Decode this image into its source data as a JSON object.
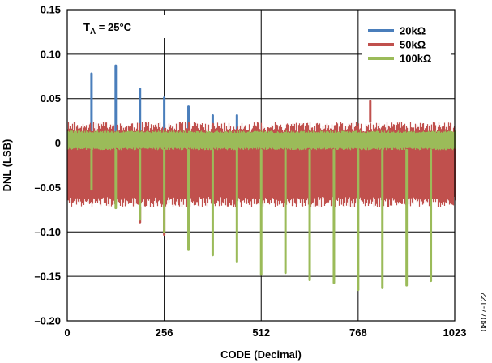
{
  "chart_data": {
    "type": "line",
    "title": "",
    "xlabel": "CODE (Decimal)",
    "ylabel": "DNL (LSB)",
    "xlim": [
      0,
      1023
    ],
    "ylim": [
      -0.2,
      0.15
    ],
    "x_ticks": [
      {
        "value": 0,
        "label": "0"
      },
      {
        "value": 256,
        "label": "256"
      },
      {
        "value": 512,
        "label": "512"
      },
      {
        "value": 768,
        "label": "768"
      },
      {
        "value": 1023,
        "label": "1023"
      }
    ],
    "y_ticks": [
      {
        "value": 0.15,
        "label": "0.15"
      },
      {
        "value": 0.1,
        "label": "0.10"
      },
      {
        "value": 0.05,
        "label": "0.05"
      },
      {
        "value": 0,
        "label": "0"
      },
      {
        "value": -0.05,
        "label": "–0.05"
      },
      {
        "value": -0.1,
        "label": "–0.10"
      },
      {
        "value": -0.15,
        "label": "–0.15"
      },
      {
        "value": -0.2,
        "label": "–0.20"
      }
    ],
    "grid": true,
    "legend_position": "top-right",
    "annotation": {
      "main": "T",
      "sub": "A",
      "rest": " = 25°C"
    },
    "series": [
      {
        "name": "20kΩ",
        "color": "#4a7ebb",
        "band": [
          -0.004,
          0.012
        ],
        "spikes": [
          {
            "x": 64,
            "y": 0.078
          },
          {
            "x": 128,
            "y": 0.087
          },
          {
            "x": 192,
            "y": 0.061
          },
          {
            "x": 256,
            "y": 0.051
          },
          {
            "x": 320,
            "y": 0.041
          },
          {
            "x": 384,
            "y": 0.031
          },
          {
            "x": 448,
            "y": 0.031
          }
        ]
      },
      {
        "name": "50kΩ",
        "color": "#c0504d",
        "band": [
          -0.072,
          0.024
        ],
        "spikes": [
          {
            "x": 192,
            "y": -0.089
          },
          {
            "x": 256,
            "y": -0.103
          },
          {
            "x": 800,
            "y": 0.047
          }
        ]
      },
      {
        "name": "100kΩ",
        "color": "#9bbb59",
        "band": [
          -0.008,
          0.014
        ],
        "spikes": [
          {
            "x": 64,
            "y": -0.052
          },
          {
            "x": 128,
            "y": -0.073
          },
          {
            "x": 192,
            "y": -0.086
          },
          {
            "x": 256,
            "y": -0.1
          },
          {
            "x": 320,
            "y": -0.12
          },
          {
            "x": 384,
            "y": -0.126
          },
          {
            "x": 448,
            "y": -0.133
          },
          {
            "x": 512,
            "y": -0.148
          },
          {
            "x": 576,
            "y": -0.146
          },
          {
            "x": 640,
            "y": -0.154
          },
          {
            "x": 704,
            "y": -0.157
          },
          {
            "x": 768,
            "y": -0.165
          },
          {
            "x": 832,
            "y": -0.163
          },
          {
            "x": 896,
            "y": -0.16
          },
          {
            "x": 960,
            "y": -0.155
          }
        ]
      }
    ]
  },
  "figure_id": "08077-122"
}
